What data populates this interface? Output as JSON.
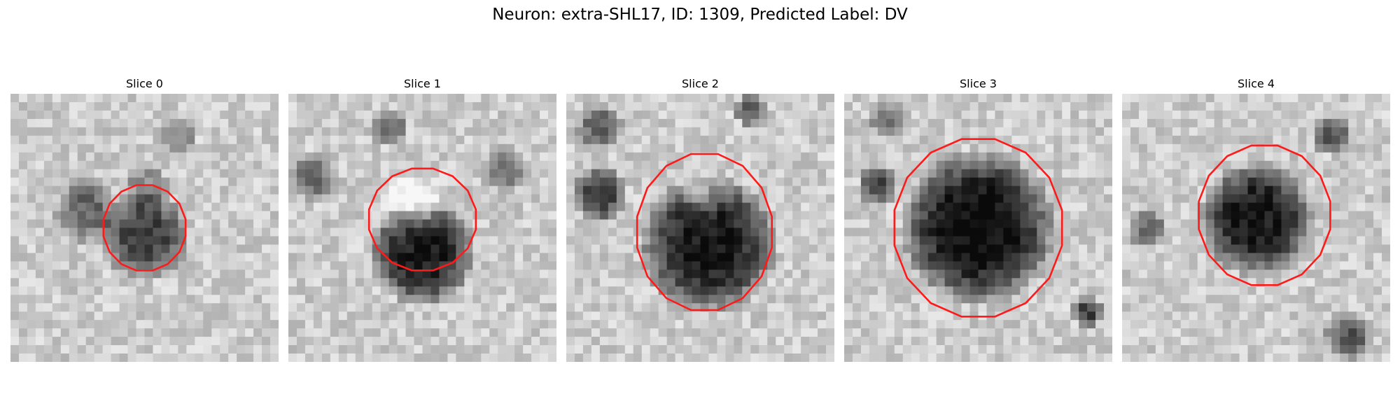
{
  "suptitle": "Neuron: extra-SHL17, ID: 1309, Predicted Label: DV",
  "colors": {
    "contour": "#ff1a1a"
  },
  "panels": [
    {
      "title": "Slice 0"
    },
    {
      "title": "Slice 1"
    },
    {
      "title": "Slice 2"
    },
    {
      "title": "Slice 3"
    },
    {
      "title": "Slice 4"
    }
  ]
}
